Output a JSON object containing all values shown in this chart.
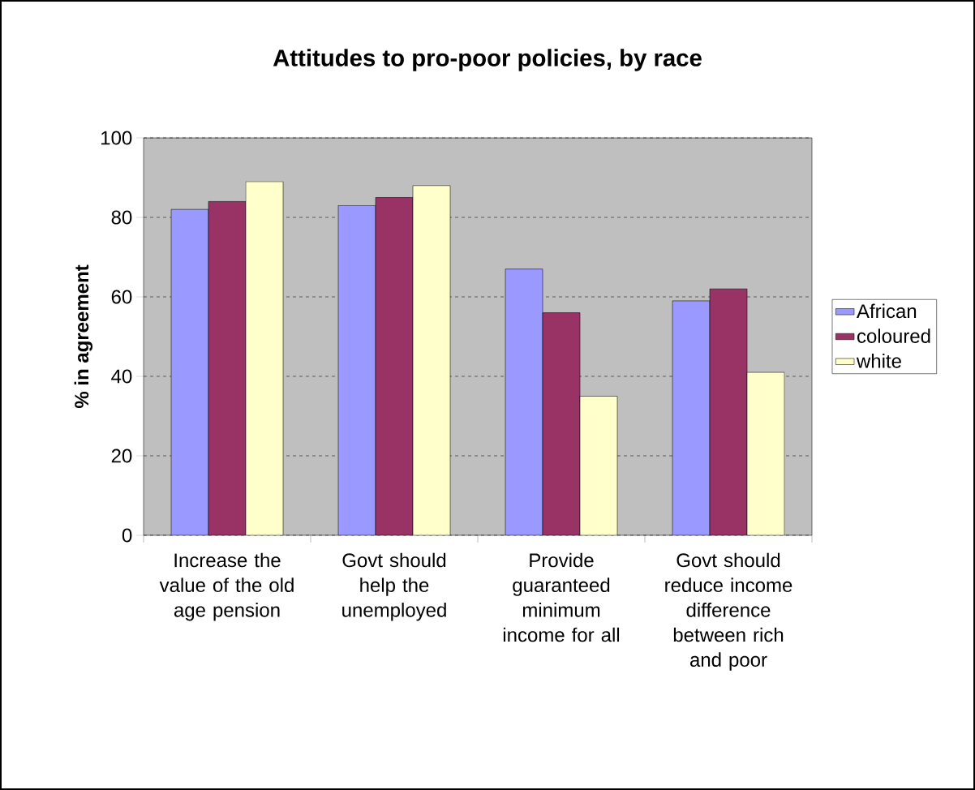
{
  "chart_data": {
    "type": "bar",
    "title": "Attitudes to pro-poor policies, by race",
    "ylabel": "% in agreement",
    "categories": [
      "Increase the value of the old age pension",
      "Govt should help the unemployed",
      "Provide guaranteed minimum income for all",
      "Govt should reduce income difference between rich and poor"
    ],
    "series": [
      {
        "name": "African",
        "color": "#9999ff",
        "values": [
          82,
          83,
          67,
          59
        ]
      },
      {
        "name": "coloured",
        "color": "#993366",
        "values": [
          84,
          85,
          56,
          62
        ]
      },
      {
        "name": "white",
        "color": "#ffffcc",
        "values": [
          89,
          88,
          35,
          41
        ]
      }
    ],
    "ylim": [
      0,
      100
    ],
    "yticks": [
      0,
      20,
      40,
      60,
      80,
      100
    ],
    "grid": "y",
    "legend": "right"
  }
}
